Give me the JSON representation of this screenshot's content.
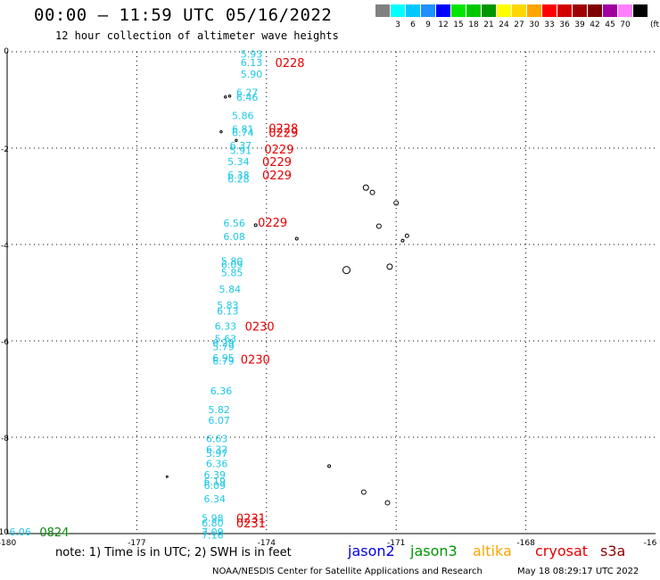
{
  "header": {
    "title": "00:00 – 11:59 UTC 05/16/2022",
    "subtitle": "12 hour collection of altimeter wave heights"
  },
  "legend": {
    "unit": "(ft)",
    "items": [
      {
        "label": "",
        "color": "#808080"
      },
      {
        "label": "3",
        "color": "#00ffff"
      },
      {
        "label": "6",
        "color": "#00c8ff"
      },
      {
        "label": "9",
        "color": "#1e90ff"
      },
      {
        "label": "12",
        "color": "#0000ff"
      },
      {
        "label": "15",
        "color": "#00e600"
      },
      {
        "label": "18",
        "color": "#00c800"
      },
      {
        "label": "21",
        "color": "#009600"
      },
      {
        "label": "24",
        "color": "#ffff00"
      },
      {
        "label": "27",
        "color": "#ffd700"
      },
      {
        "label": "30",
        "color": "#ffa500"
      },
      {
        "label": "33",
        "color": "#ff0000"
      },
      {
        "label": "36",
        "color": "#d20000"
      },
      {
        "label": "39",
        "color": "#a00000"
      },
      {
        "label": "42",
        "color": "#800000"
      },
      {
        "label": "45",
        "color": "#a000a0"
      },
      {
        "label": "70",
        "color": "#ff80ff"
      },
      {
        "label": "",
        "color": "#000000"
      }
    ]
  },
  "axes": {
    "x_ticks": [
      "-180",
      "-177",
      "-174",
      "-171",
      "-168",
      "-16"
    ],
    "y_ticks": [
      "0",
      "-2",
      "-4",
      "-6",
      "-8",
      "-10"
    ]
  },
  "map": {
    "lon_range": [
      -180,
      -165
    ],
    "lat_range": [
      -10,
      0
    ],
    "wave_color": "#1ec8e6",
    "time_color": "#e60000",
    "green_color": "#0a8a0a",
    "wave_labels": [
      {
        "text": "5.93",
        "lon": -174.6,
        "lat": -0.05
      },
      {
        "text": "6.13",
        "lon": -174.6,
        "lat": -0.22
      },
      {
        "text": "5.90",
        "lon": -174.6,
        "lat": -0.46
      },
      {
        "text": "6.27",
        "lon": -174.7,
        "lat": -0.84
      },
      {
        "text": "6.46",
        "lon": -174.7,
        "lat": -0.94
      },
      {
        "text": "5.86",
        "lon": -174.8,
        "lat": -1.32
      },
      {
        "text": "6.81",
        "lon": -174.8,
        "lat": -1.6
      },
      {
        "text": "6.74",
        "lon": -174.8,
        "lat": -1.68
      },
      {
        "text": "6.37",
        "lon": -174.85,
        "lat": -1.94
      },
      {
        "text": "5.91",
        "lon": -174.85,
        "lat": -2.05
      },
      {
        "text": "5.34",
        "lon": -174.9,
        "lat": -2.28
      },
      {
        "text": "6.38",
        "lon": -174.9,
        "lat": -2.56
      },
      {
        "text": "6.28",
        "lon": -174.9,
        "lat": -2.64
      },
      {
        "text": "6.56",
        "lon": -175.0,
        "lat": -3.56
      },
      {
        "text": "6.08",
        "lon": -175.0,
        "lat": -3.83
      },
      {
        "text": "5.80",
        "lon": -175.05,
        "lat": -4.34
      },
      {
        "text": "6.09",
        "lon": -175.05,
        "lat": -4.42
      },
      {
        "text": "5.85",
        "lon": -175.05,
        "lat": -4.58
      },
      {
        "text": "5.84",
        "lon": -175.1,
        "lat": -4.93
      },
      {
        "text": "5.83",
        "lon": -175.15,
        "lat": -5.26
      },
      {
        "text": "6.13",
        "lon": -175.15,
        "lat": -5.38
      },
      {
        "text": "6.33",
        "lon": -175.2,
        "lat": -5.69
      },
      {
        "text": "5.63",
        "lon": -175.2,
        "lat": -5.95
      },
      {
        "text": "6.29",
        "lon": -175.25,
        "lat": -6.04
      },
      {
        "text": "5.79",
        "lon": -175.25,
        "lat": -6.12
      },
      {
        "text": "6.95",
        "lon": -175.25,
        "lat": -6.35
      },
      {
        "text": "6.79",
        "lon": -175.25,
        "lat": -6.42
      },
      {
        "text": "6.36",
        "lon": -175.3,
        "lat": -7.04
      },
      {
        "text": "5.82",
        "lon": -175.35,
        "lat": -7.43
      },
      {
        "text": "6.07",
        "lon": -175.35,
        "lat": -7.65
      },
      {
        "text": "6.63",
        "lon": -175.4,
        "lat": -8.03
      },
      {
        "text": "6.32",
        "lon": -175.4,
        "lat": -8.25
      },
      {
        "text": "5.97",
        "lon": -175.4,
        "lat": -8.33
      },
      {
        "text": "6.36",
        "lon": -175.4,
        "lat": -8.55
      },
      {
        "text": "6.39",
        "lon": -175.45,
        "lat": -8.78
      },
      {
        "text": "6.19",
        "lon": -175.45,
        "lat": -8.92
      },
      {
        "text": "6.09",
        "lon": -175.45,
        "lat": -9.0
      },
      {
        "text": "6.34",
        "lon": -175.45,
        "lat": -9.28
      },
      {
        "text": "5.98",
        "lon": -175.5,
        "lat": -9.68
      },
      {
        "text": "6.80",
        "lon": -175.5,
        "lat": -9.78
      },
      {
        "text": "7.09",
        "lon": -175.5,
        "lat": -9.96
      },
      {
        "text": "7.16",
        "lon": -175.5,
        "lat": -10.03
      }
    ],
    "time_labels": [
      {
        "text": "0228",
        "lon": -173.8,
        "lat": -0.22
      },
      {
        "text": "0228",
        "lon": -173.95,
        "lat": -1.58
      },
      {
        "text": "0229",
        "lon": -173.95,
        "lat": -1.68
      },
      {
        "text": "0229",
        "lon": -174.05,
        "lat": -2.02
      },
      {
        "text": "0229",
        "lon": -174.1,
        "lat": -2.28
      },
      {
        "text": "0229",
        "lon": -174.1,
        "lat": -2.56
      },
      {
        "text": "0229",
        "lon": -174.2,
        "lat": -3.54
      },
      {
        "text": "0230",
        "lon": -174.5,
        "lat": -5.69
      },
      {
        "text": "0230",
        "lon": -174.6,
        "lat": -6.38
      },
      {
        "text": "0231",
        "lon": -174.7,
        "lat": -9.68
      },
      {
        "text": "0231",
        "lon": -174.7,
        "lat": -9.78
      }
    ],
    "green_wave": {
      "text": "6.06",
      "lon": -179.95,
      "lat": -9.96
    },
    "green_time": {
      "text": "0824",
      "lon": -179.25,
      "lat": -9.96
    },
    "islands": [
      {
        "lon": -174.95,
        "lat": -0.94,
        "r": 1.2
      },
      {
        "lon": -174.85,
        "lat": -0.92,
        "r": 1.2
      },
      {
        "lon": -175.05,
        "lat": -1.66,
        "r": 1.2
      },
      {
        "lon": -174.7,
        "lat": -1.84,
        "r": 1.2
      },
      {
        "lon": -171.7,
        "lat": -2.82,
        "r": 3
      },
      {
        "lon": -171.55,
        "lat": -2.92,
        "r": 2.5
      },
      {
        "lon": -171.0,
        "lat": -3.14,
        "r": 2.5
      },
      {
        "lon": -171.4,
        "lat": -3.62,
        "r": 2.5
      },
      {
        "lon": -170.75,
        "lat": -3.82,
        "r": 2
      },
      {
        "lon": -170.85,
        "lat": -3.92,
        "r": 1.5
      },
      {
        "lon": -174.25,
        "lat": -3.6,
        "r": 1.5
      },
      {
        "lon": -173.3,
        "lat": -3.88,
        "r": 1.5
      },
      {
        "lon": -172.15,
        "lat": -4.53,
        "r": 4
      },
      {
        "lon": -171.15,
        "lat": -4.46,
        "r": 3
      },
      {
        "lon": -172.55,
        "lat": -8.6,
        "r": 1.5
      },
      {
        "lon": -171.75,
        "lat": -9.14,
        "r": 2.5
      },
      {
        "lon": -171.2,
        "lat": -9.36,
        "r": 2.5
      },
      {
        "lon": -176.3,
        "lat": -8.82,
        "r": 1
      }
    ]
  },
  "satellites": [
    {
      "name": "jason2",
      "color": "#0000e6"
    },
    {
      "name": "jason3",
      "color": "#009600"
    },
    {
      "name": "altika",
      "color": "#ffa500"
    },
    {
      "name": "cryosat",
      "color": "#e60000"
    },
    {
      "name": "s3a",
      "color": "#8b0000"
    }
  ],
  "footer": {
    "note": "note: 1) Time is in UTC; 2) SWH is in feet",
    "credit": "NOAA/NESDIS Center for Satellite Applications and Research",
    "timestamp": "May 18 08:29:17 UTC 2022"
  }
}
